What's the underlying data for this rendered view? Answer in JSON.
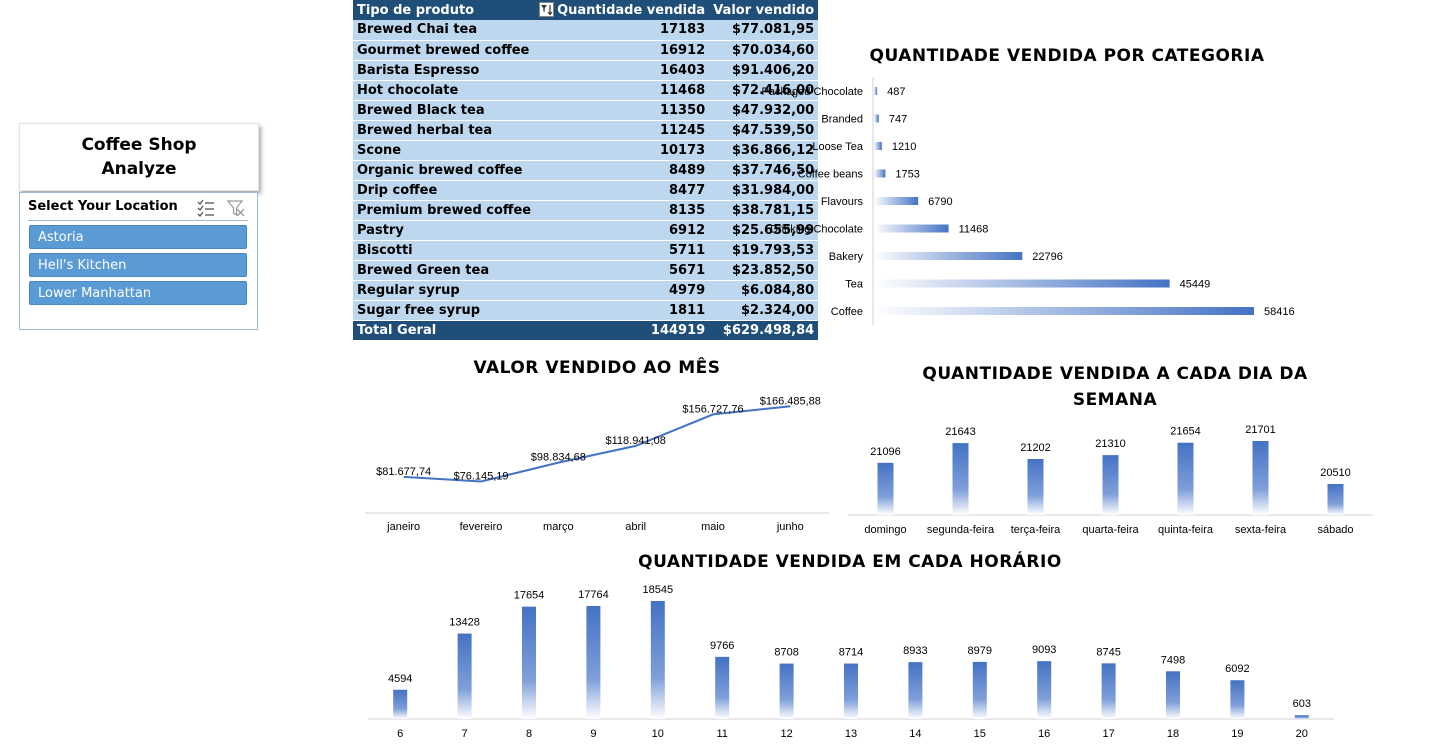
{
  "dashboard": {
    "title_line1": "Coffee Shop",
    "title_line2": "Analyze"
  },
  "slicer": {
    "title": "Select Your Location",
    "icons": [
      "multi-select-icon",
      "clear-filter-icon"
    ],
    "items": [
      "Astoria",
      "Hell's Kitchen",
      "Lower Manhattan"
    ],
    "color": "#5b9bd5"
  },
  "pivot": {
    "headers": [
      "Tipo de produto",
      "Quantidade vendida",
      "Valor vendido"
    ],
    "rows": [
      [
        "Brewed Chai tea",
        "17183",
        "$77.081,95"
      ],
      [
        "Gourmet brewed coffee",
        "16912",
        "$70.034,60"
      ],
      [
        "Barista Espresso",
        "16403",
        "$91.406,20"
      ],
      [
        "Hot chocolate",
        "11468",
        "$72.416,00"
      ],
      [
        "Brewed Black tea",
        "11350",
        "$47.932,00"
      ],
      [
        "Brewed herbal tea",
        "11245",
        "$47.539,50"
      ],
      [
        "Scone",
        "10173",
        "$36.866,12"
      ],
      [
        "Organic brewed coffee",
        "8489",
        "$37.746,50"
      ],
      [
        "Drip coffee",
        "8477",
        "$31.984,00"
      ],
      [
        "Premium brewed coffee",
        "8135",
        "$38.781,15"
      ],
      [
        "Pastry",
        "6912",
        "$25.655,99"
      ],
      [
        "Biscotti",
        "5711",
        "$19.793,53"
      ],
      [
        "Brewed Green tea",
        "5671",
        "$23.852,50"
      ],
      [
        "Regular syrup",
        "4979",
        "$6.084,80"
      ],
      [
        "Sugar free syrup",
        "1811",
        "$2.324,00"
      ]
    ],
    "total": [
      "Total Geral",
      "144919",
      "$629.498,84"
    ],
    "header_color": "#1f4e79",
    "row_color": "#bdd7ee"
  },
  "chart_data": [
    {
      "type": "bar",
      "orientation": "horizontal",
      "title": "QUANTIDADE VENDIDA POR CATEGORIA",
      "categories": [
        "Packaged Chocolate",
        "Branded",
        "Loose Tea",
        "Coffee beans",
        "Flavours",
        "Drinking Chocolate",
        "Bakery",
        "Tea",
        "Coffee"
      ],
      "values": [
        487,
        747,
        1210,
        1753,
        6790,
        11468,
        22796,
        45449,
        58416
      ],
      "labels": [
        "487",
        "747",
        "1210",
        "1753",
        "6790",
        "11468",
        "22796",
        "45449",
        "58416"
      ],
      "color": "#4472c4"
    },
    {
      "type": "line",
      "title": "VALOR VENDIDO AO MÊS",
      "categories": [
        "janeiro",
        "fevereiro",
        "março",
        "abril",
        "maio",
        "junho"
      ],
      "values": [
        81677.74,
        76145.19,
        98834.68,
        118941.08,
        156727.76,
        166485.88
      ],
      "labels": [
        "$81.677,74",
        "$76.145,19",
        "$98.834,68",
        "$118.941,08",
        "$156.727,76",
        "$166.485,88"
      ],
      "color": "#4472c4"
    },
    {
      "type": "bar",
      "title": "QUANTIDADE VENDIDA A CADA DIA DA SEMANA",
      "categories": [
        "domingo",
        "segunda-feira",
        "terça-feira",
        "quarta-feira",
        "quinta-feira",
        "sexta-feira",
        "sábado"
      ],
      "values": [
        21096,
        21643,
        21202,
        21310,
        21654,
        21701,
        20510
      ],
      "labels": [
        "21096",
        "21643",
        "21202",
        "21310",
        "21654",
        "21701",
        "20510"
      ],
      "color": "#4472c4"
    },
    {
      "type": "bar",
      "title": "QUANTIDADE VENDIDA EM CADA HORÁRIO",
      "categories": [
        "6",
        "7",
        "8",
        "9",
        "10",
        "11",
        "12",
        "13",
        "14",
        "15",
        "16",
        "17",
        "18",
        "19",
        "20"
      ],
      "values": [
        4594,
        13428,
        17654,
        17764,
        18545,
        9766,
        8708,
        8714,
        8933,
        8979,
        9093,
        8745,
        7498,
        6092,
        603
      ],
      "labels": [
        "4594",
        "13428",
        "17654",
        "17764",
        "18545",
        "9766",
        "8708",
        "8714",
        "8933",
        "8979",
        "9093",
        "8745",
        "7498",
        "6092",
        "603"
      ],
      "color": "#4472c4"
    }
  ]
}
